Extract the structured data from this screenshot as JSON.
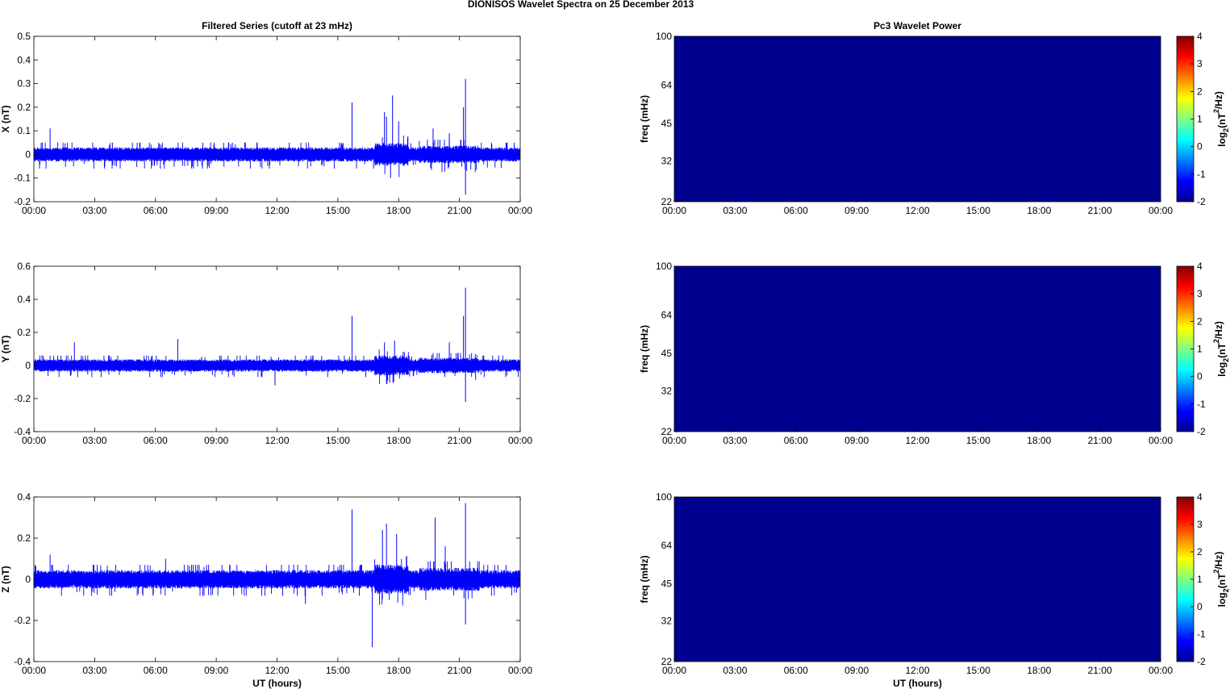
{
  "figure_title": "DIONISOS Wavelet Spectra on 25 December  2013",
  "colors": {
    "trace": "#0000ff",
    "spectrogram_fill": "#00008f"
  },
  "colormap": [
    "#00008f",
    "#0000ff",
    "#0080ff",
    "#00ffff",
    "#80ff80",
    "#ffff00",
    "#ff8000",
    "#ff0000",
    "#800000"
  ],
  "chart_data": [
    {
      "type": "line",
      "title": "Filtered Series (cutoff at 23 mHz)",
      "xlabel": "",
      "ylabel": "X (nT)",
      "x_ticks": [
        "00:00",
        "03:00",
        "06:00",
        "09:00",
        "12:00",
        "15:00",
        "18:00",
        "21:00",
        "00:00"
      ],
      "xlim_hours": [
        0,
        24
      ],
      "ylim": [
        -0.2,
        0.5
      ],
      "y_ticks": [
        -0.2,
        -0.1,
        0,
        0.1,
        0.2,
        0.3,
        0.4,
        0.5
      ],
      "noise_amplitude": 0.02,
      "baseline_max": 0.05,
      "baseline_min": -0.06,
      "spikes": [
        {
          "t": 0.8,
          "v": 0.11
        },
        {
          "t": 15.7,
          "v": 0.22
        },
        {
          "t": 17.3,
          "v": 0.18
        },
        {
          "t": 17.4,
          "v": 0.16
        },
        {
          "t": 17.7,
          "v": 0.25
        },
        {
          "t": 17.6,
          "v": -0.1
        },
        {
          "t": 18.0,
          "v": 0.14
        },
        {
          "t": 19.7,
          "v": 0.11
        },
        {
          "t": 20.5,
          "v": 0.09
        },
        {
          "t": 21.3,
          "v": 0.32
        },
        {
          "t": 21.2,
          "v": 0.2
        },
        {
          "t": 21.3,
          "v": -0.17
        }
      ]
    },
    {
      "type": "line",
      "title": "",
      "xlabel": "",
      "ylabel": "Y (nT)",
      "x_ticks": [
        "00:00",
        "03:00",
        "06:00",
        "09:00",
        "12:00",
        "15:00",
        "18:00",
        "21:00",
        "00:00"
      ],
      "xlim_hours": [
        0,
        24
      ],
      "ylim": [
        -0.4,
        0.6
      ],
      "y_ticks": [
        -0.4,
        -0.2,
        0,
        0.2,
        0.4,
        0.6
      ],
      "noise_amplitude": 0.025,
      "baseline_max": 0.06,
      "baseline_min": -0.07,
      "spikes": [
        {
          "t": 2.0,
          "v": 0.14
        },
        {
          "t": 7.1,
          "v": 0.16
        },
        {
          "t": 11.9,
          "v": -0.12
        },
        {
          "t": 15.7,
          "v": 0.3
        },
        {
          "t": 17.3,
          "v": 0.14
        },
        {
          "t": 17.8,
          "v": 0.15
        },
        {
          "t": 20.5,
          "v": 0.14
        },
        {
          "t": 21.3,
          "v": 0.47
        },
        {
          "t": 21.2,
          "v": 0.3
        },
        {
          "t": 21.3,
          "v": -0.22
        }
      ]
    },
    {
      "type": "line",
      "title": "",
      "xlabel": "UT (hours)",
      "ylabel": "Z (nT)",
      "x_ticks": [
        "00:00",
        "03:00",
        "06:00",
        "09:00",
        "12:00",
        "15:00",
        "18:00",
        "21:00",
        "00:00"
      ],
      "xlim_hours": [
        0,
        24
      ],
      "ylim": [
        -0.4,
        0.4
      ],
      "y_ticks": [
        -0.4,
        -0.2,
        0,
        0.2,
        0.4
      ],
      "noise_amplitude": 0.03,
      "baseline_max": 0.07,
      "baseline_min": -0.08,
      "spikes": [
        {
          "t": 0.8,
          "v": 0.12
        },
        {
          "t": 6.5,
          "v": 0.1
        },
        {
          "t": 13.4,
          "v": -0.12
        },
        {
          "t": 15.7,
          "v": 0.34
        },
        {
          "t": 16.7,
          "v": -0.33
        },
        {
          "t": 17.2,
          "v": 0.24
        },
        {
          "t": 17.4,
          "v": 0.27
        },
        {
          "t": 17.9,
          "v": 0.22
        },
        {
          "t": 19.8,
          "v": 0.3
        },
        {
          "t": 20.3,
          "v": 0.16
        },
        {
          "t": 21.3,
          "v": 0.37
        },
        {
          "t": 21.3,
          "v": -0.22
        }
      ]
    },
    {
      "type": "heatmap",
      "title": "Pc3 Wavelet Power",
      "xlabel": "",
      "ylabel": "freq (mHz)",
      "x_ticks": [
        "00:00",
        "03:00",
        "06:00",
        "09:00",
        "12:00",
        "15:00",
        "18:00",
        "21:00",
        "00:00"
      ],
      "y_ticks": [
        "100",
        "64",
        "45",
        "32",
        "22"
      ],
      "y_scale": "log",
      "ylim": [
        22,
        100
      ],
      "values": "uniform minimum (-2)",
      "colorbar": {
        "label_base": "log",
        "label_sub": "2",
        "label_rest1": "(nT",
        "label_sup": "2",
        "label_rest2": "/Hz)",
        "ticks": [
          4,
          3,
          2,
          1,
          0,
          -1,
          -2
        ]
      }
    },
    {
      "type": "heatmap",
      "title": "",
      "xlabel": "",
      "ylabel": "freq (mHz)",
      "x_ticks": [
        "00:00",
        "03:00",
        "06:00",
        "09:00",
        "12:00",
        "15:00",
        "18:00",
        "21:00",
        "00:00"
      ],
      "y_ticks": [
        "100",
        "64",
        "45",
        "32",
        "22"
      ],
      "y_scale": "log",
      "ylim": [
        22,
        100
      ],
      "values": "uniform minimum (-2)",
      "colorbar": {
        "label_base": "log",
        "label_sub": "2",
        "label_rest1": "(nT",
        "label_sup": "2",
        "label_rest2": "/Hz)",
        "ticks": [
          4,
          3,
          2,
          1,
          0,
          -1,
          -2
        ]
      }
    },
    {
      "type": "heatmap",
      "title": "",
      "xlabel": "UT (hours)",
      "ylabel": "freq (mHz)",
      "x_ticks": [
        "00:00",
        "03:00",
        "06:00",
        "09:00",
        "12:00",
        "15:00",
        "18:00",
        "21:00",
        "00:00"
      ],
      "y_ticks": [
        "100",
        "64",
        "45",
        "32",
        "22"
      ],
      "y_scale": "log",
      "ylim": [
        22,
        100
      ],
      "values": "uniform minimum (-2)",
      "colorbar": {
        "label_base": "log",
        "label_sub": "2",
        "label_rest1": "(nT",
        "label_sup": "2",
        "label_rest2": "/Hz)",
        "ticks": [
          4,
          3,
          2,
          1,
          0,
          -1,
          -2
        ]
      }
    }
  ]
}
